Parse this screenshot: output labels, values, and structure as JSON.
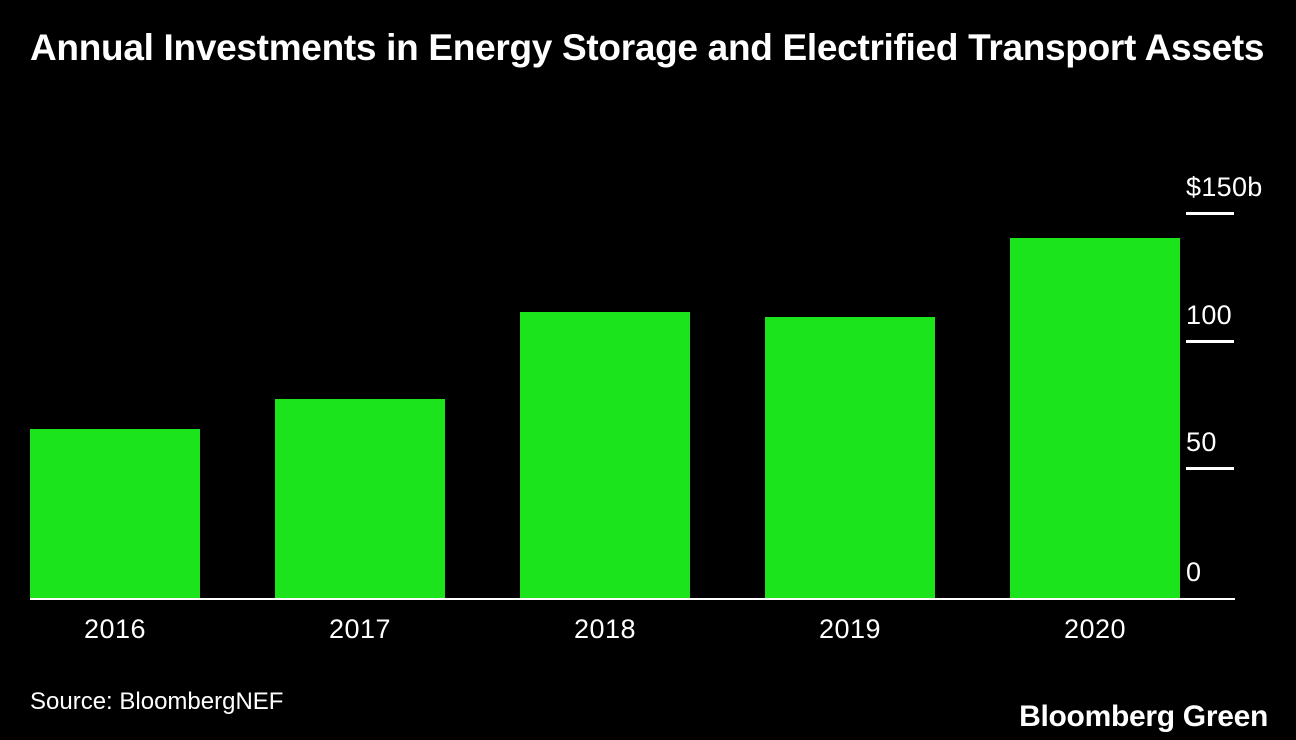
{
  "page": {
    "background": "#000000",
    "source": "Source: BloombergNEF",
    "brand": "Bloomberg Green"
  },
  "chart_data": {
    "type": "bar",
    "title": "Annual Investments in Energy Storage and Electrified Transport Assets",
    "categories": [
      "2016",
      "2017",
      "2018",
      "2019",
      "2020"
    ],
    "values": [
      66,
      78,
      112,
      110,
      141
    ],
    "ymax": 150,
    "ylim": [
      0,
      150
    ],
    "yticks": [
      {
        "label": "$150b",
        "value": 150,
        "tick": true
      },
      {
        "label": "100",
        "value": 100,
        "tick": true
      },
      {
        "label": "50",
        "value": 50,
        "tick": true
      },
      {
        "label": "0",
        "value": 0,
        "tick": false
      }
    ],
    "bar_color": "#1CE41C",
    "axis_color": "#FFFFFF",
    "grid": false,
    "legend": "none"
  }
}
